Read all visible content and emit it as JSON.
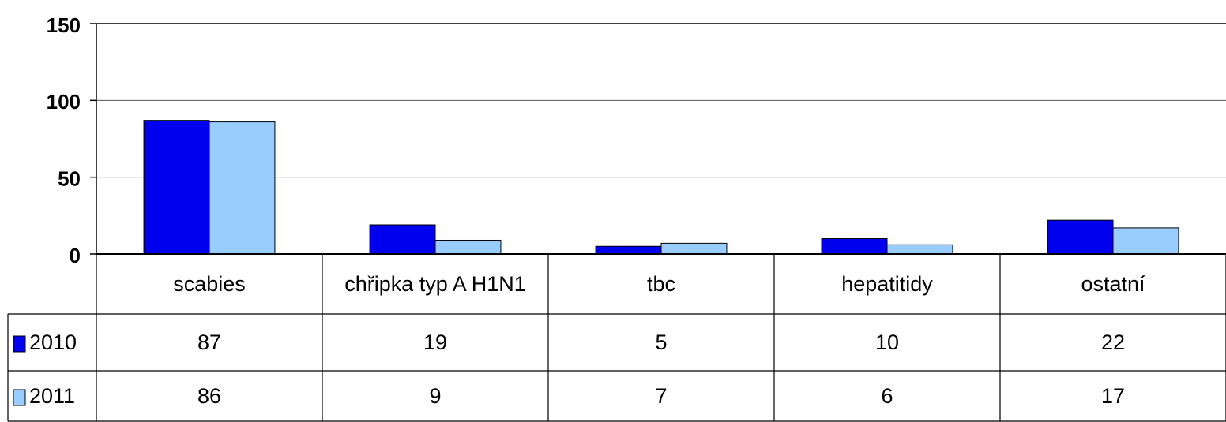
{
  "chart_data": {
    "type": "bar",
    "categories": [
      "scabies",
      "chřipka typ A H1N1",
      "tbc",
      "hepatitidy",
      "ostatní"
    ],
    "series": [
      {
        "name": "2010",
        "color": "#0000ee",
        "values": [
          87,
          19,
          5,
          10,
          22
        ]
      },
      {
        "name": "2011",
        "color": "#99ccff",
        "values": [
          86,
          9,
          7,
          6,
          17
        ]
      }
    ],
    "ylim": [
      0,
      150
    ],
    "yticks": [
      0,
      50,
      100,
      150
    ],
    "grid": true,
    "data_table": true
  }
}
